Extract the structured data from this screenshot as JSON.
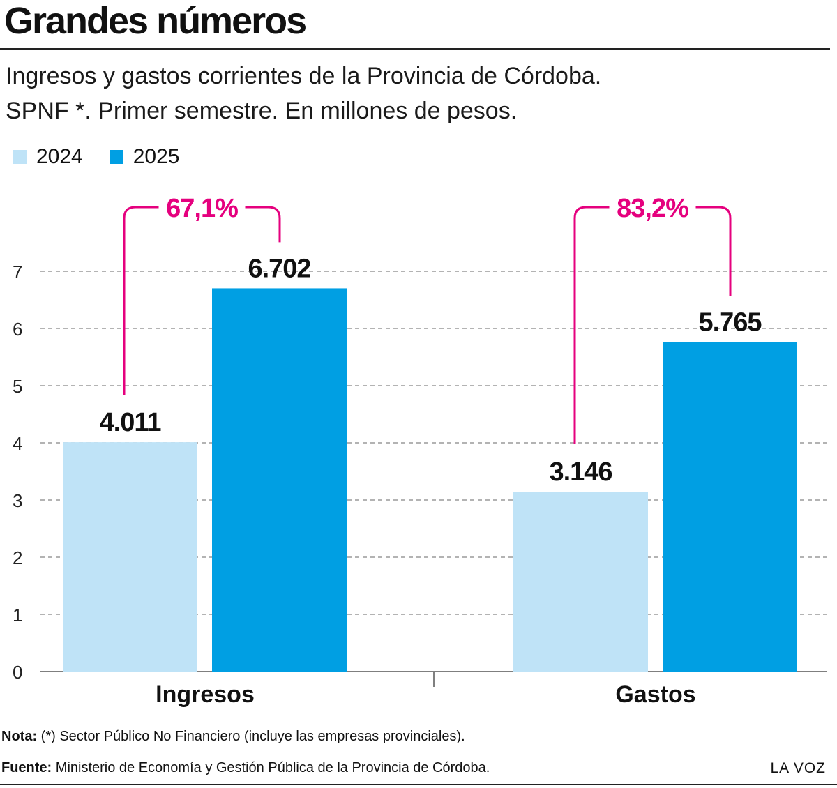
{
  "header": {
    "title": "Grandes números",
    "subtitle_line1": "Ingresos y gastos corrientes de la Provincia de Córdoba.",
    "subtitle_line2": "SPNF *. Primer semestre. En millones de pesos."
  },
  "chart_data": {
    "type": "bar",
    "categories": [
      "Ingresos",
      "Gastos"
    ],
    "series": [
      {
        "name": "2024",
        "values": [
          4.011,
          3.146
        ],
        "labels": [
          "4.011",
          "3.146"
        ],
        "color": "#bfe3f7"
      },
      {
        "name": "2025",
        "values": [
          6.702,
          5.765
        ],
        "labels": [
          "6.702",
          "5.765"
        ],
        "color": "#009fe3"
      }
    ],
    "changes": [
      "67,1%",
      "83,2%"
    ],
    "change_color": "#e5007e",
    "ylim": [
      0,
      7
    ],
    "yticks": [
      "0",
      "1",
      "2",
      "3",
      "4",
      "5",
      "6",
      "7"
    ],
    "grid": true,
    "legend": "top-left"
  },
  "footer": {
    "note_label": "Nota:",
    "note_text": "(*) Sector Público No Financiero (incluye las empresas provinciales).",
    "source_label": "Fuente:",
    "source_text": "Ministerio de Economía y Gestión Pública de la Provincia de Córdoba.",
    "brand": "LA VOZ"
  }
}
